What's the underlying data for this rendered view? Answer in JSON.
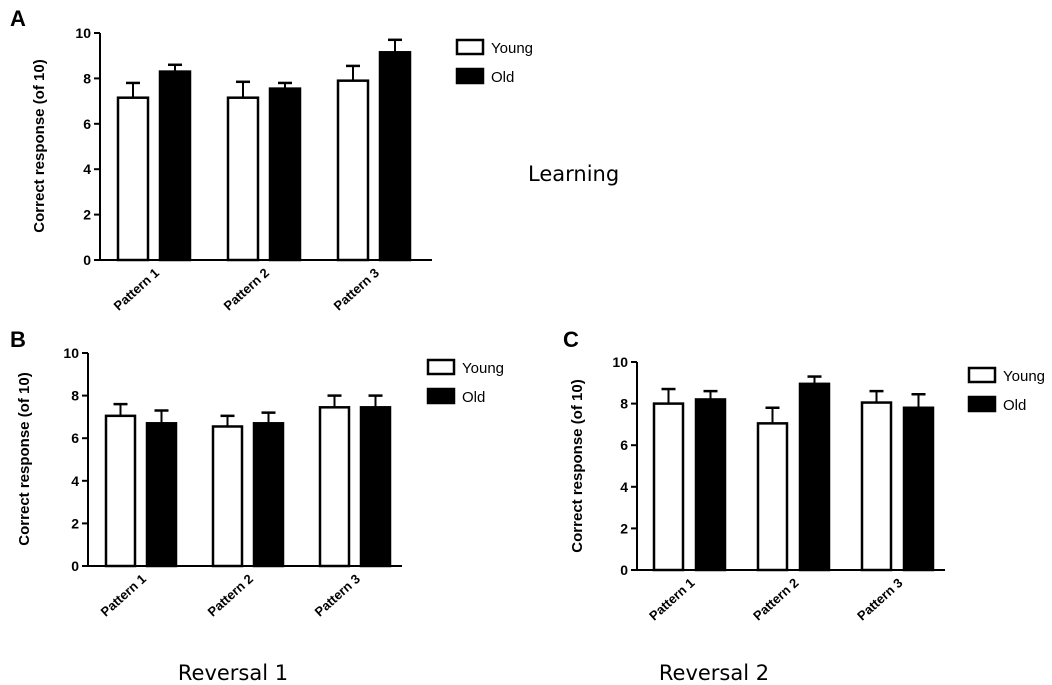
{
  "chart_data": [
    {
      "id": "A",
      "type": "bar",
      "panel_label": "A",
      "caption": "Learning",
      "ylabel": "Correct response (of 10)",
      "xlabel": "",
      "ylim": [
        0,
        10
      ],
      "yticks": [
        "0",
        "2",
        "4",
        "6",
        "8",
        "10"
      ],
      "categories": [
        "Pattern 1",
        "Pattern 2",
        "Pattern 3"
      ],
      "series": [
        {
          "name": "Young",
          "color": "#ffffff",
          "values": [
            7.15,
            7.15,
            7.9
          ],
          "errors": [
            0.65,
            0.7,
            0.65
          ]
        },
        {
          "name": "Old",
          "color": "#000000",
          "values": [
            8.3,
            7.55,
            9.15
          ],
          "errors": [
            0.3,
            0.25,
            0.55
          ]
        }
      ]
    },
    {
      "id": "B",
      "type": "bar",
      "panel_label": "B",
      "caption": "Reversal 1",
      "ylabel": "Correct response (of 10)",
      "xlabel": "",
      "ylim": [
        0,
        10
      ],
      "yticks": [
        "0",
        "2",
        "4",
        "6",
        "8",
        "10"
      ],
      "categories": [
        "Pattern 1",
        "Pattern 2",
        "Pattern 3"
      ],
      "series": [
        {
          "name": "Young",
          "color": "#ffffff",
          "values": [
            7.05,
            6.55,
            7.45
          ],
          "errors": [
            0.55,
            0.5,
            0.55
          ]
        },
        {
          "name": "Old",
          "color": "#000000",
          "values": [
            6.7,
            6.7,
            7.45
          ],
          "errors": [
            0.6,
            0.5,
            0.55
          ]
        }
      ]
    },
    {
      "id": "C",
      "type": "bar",
      "panel_label": "C",
      "caption": "Reversal 2",
      "ylabel": "Correct response (of 10)",
      "xlabel": "",
      "ylim": [
        0,
        10
      ],
      "yticks": [
        "0",
        "2",
        "4",
        "6",
        "8",
        "10"
      ],
      "categories": [
        "Pattern 1",
        "Pattern 2",
        "Pattern 3"
      ],
      "series": [
        {
          "name": "Young",
          "color": "#ffffff",
          "values": [
            8.0,
            7.05,
            8.05
          ],
          "errors": [
            0.7,
            0.75,
            0.55
          ]
        },
        {
          "name": "Old",
          "color": "#000000",
          "values": [
            8.2,
            8.95,
            7.8
          ],
          "errors": [
            0.4,
            0.35,
            0.65
          ]
        }
      ]
    }
  ]
}
